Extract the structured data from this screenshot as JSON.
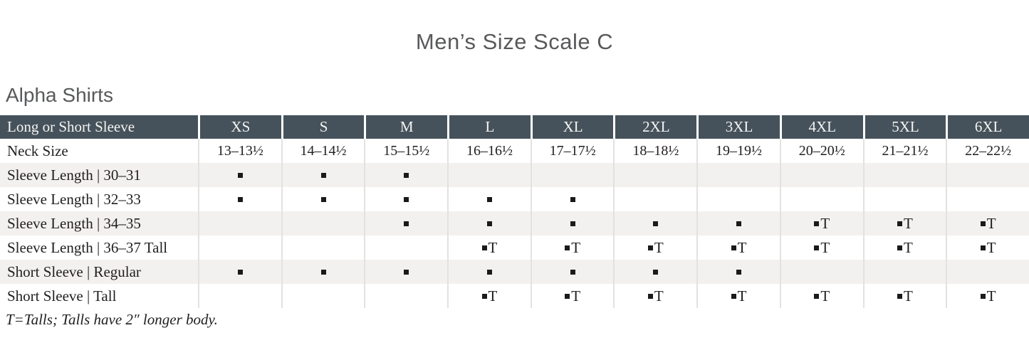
{
  "page": {
    "title": "Men’s Size Scale C",
    "section_title": "Alpha Shirts",
    "footnote": "T=Talls; Talls have 2″ longer body."
  },
  "table": {
    "corner_label": "Long or Short Sleeve",
    "sizes": [
      "XS",
      "S",
      "M",
      "L",
      "XL",
      "2XL",
      "3XL",
      "4XL",
      "5XL",
      "6XL"
    ],
    "rows": [
      {
        "label": "Neck Size",
        "cells": [
          "13–13½",
          "14–14½",
          "15–15½",
          "16–16½",
          "17–17½",
          "18–18½",
          "19–19½",
          "20–20½",
          "21–21½",
          "22–22½"
        ]
      },
      {
        "label": "Sleeve Length | 30–31",
        "cells": [
          "▪",
          "▪",
          "▪",
          "",
          "",
          "",
          "",
          "",
          "",
          ""
        ]
      },
      {
        "label": "Sleeve Length | 32–33",
        "cells": [
          "▪",
          "▪",
          "▪",
          "▪",
          "▪",
          "",
          "",
          "",
          "",
          ""
        ]
      },
      {
        "label": "Sleeve Length | 34–35",
        "cells": [
          "",
          "",
          "▪",
          "▪",
          "▪",
          "▪",
          "▪",
          "▪T",
          "▪T",
          "▪T"
        ]
      },
      {
        "label": "Sleeve Length | 36–37 Tall",
        "cells": [
          "",
          "",
          "",
          "▪T",
          "▪T",
          "▪T",
          "▪T",
          "▪T",
          "▪T",
          "▪T"
        ]
      },
      {
        "label": "Short Sleeve | Regular",
        "cells": [
          "▪",
          "▪",
          "▪",
          "▪",
          "▪",
          "▪",
          "▪",
          "",
          "",
          ""
        ]
      },
      {
        "label": "Short Sleeve | Tall",
        "cells": [
          "",
          "",
          "",
          "▪T",
          "▪T",
          "▪T",
          "▪T",
          "▪T",
          "▪T",
          "▪T"
        ]
      }
    ],
    "legend": {
      "dot": "▪",
      "dot_tall": "▪T"
    }
  },
  "colors": {
    "header_bg": "#46525B",
    "header_text": "#F4F4F2",
    "row_bg": "#FFFFFF",
    "row_alt_bg": "#F3F1EF",
    "grid_line": "#E4E2DF",
    "body_text": "#211E1E",
    "title_text": "#58595B",
    "marker": "#1A1A1A"
  }
}
